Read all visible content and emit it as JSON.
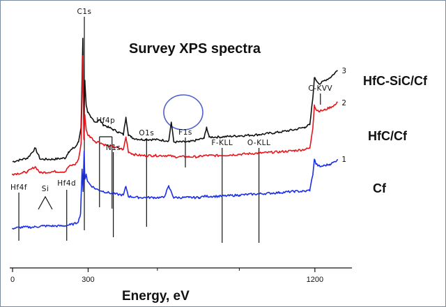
{
  "chart_data": {
    "type": "line",
    "title": "Survey XPS spectra",
    "xlabel": "Energy, eV",
    "ylabel": "",
    "xlim": [
      0,
      1300
    ],
    "ylim": [
      0,
      100
    ],
    "x_ticks": [
      {
        "value": 0,
        "label": "0"
      },
      {
        "value": 300,
        "label": "300"
      },
      {
        "value": 1200,
        "label": "1200"
      }
    ],
    "series": [
      {
        "name": "HfC-SiC/Cf",
        "number": "3",
        "color": "#111111",
        "x": [
          0,
          40,
          60,
          90,
          110,
          160,
          210,
          222,
          235,
          250,
          262,
          272,
          279,
          283,
          287,
          292,
          298,
          310,
          330,
          345,
          360,
          380,
          400,
          420,
          440,
          450,
          460,
          470,
          480,
          510,
          560,
          620,
          630,
          640,
          650,
          700,
          740,
          760,
          770,
          780,
          820,
          900,
          980,
          1060,
          1120,
          1160,
          1180,
          1192,
          1198,
          1205,
          1220,
          1240,
          1260,
          1280,
          1290
        ],
        "y": [
          43,
          44,
          44.5,
          48.5,
          44,
          44,
          44.5,
          47,
          48,
          49,
          51,
          57,
          93,
          58,
          76,
          66,
          63,
          61,
          59,
          60,
          58,
          57,
          56,
          55,
          54,
          61,
          54,
          53,
          52.5,
          52,
          52,
          51.5,
          59,
          51,
          51,
          51,
          52,
          52.5,
          57,
          53,
          53,
          53.5,
          54,
          55,
          56,
          57,
          58,
          69,
          77,
          76,
          74.5,
          76,
          77,
          79,
          80
        ]
      },
      {
        "name": "HfC/Cf",
        "number": "2",
        "color": "#e8141b",
        "x": [
          0,
          40,
          60,
          90,
          110,
          160,
          210,
          222,
          235,
          250,
          262,
          272,
          279,
          283,
          287,
          292,
          298,
          310,
          330,
          345,
          360,
          380,
          400,
          420,
          440,
          450,
          460,
          470,
          480,
          510,
          560,
          620,
          640,
          700,
          740,
          760,
          820,
          900,
          980,
          1060,
          1120,
          1160,
          1180,
          1192,
          1198,
          1205,
          1220,
          1240,
          1260,
          1280,
          1290
        ],
        "y": [
          38,
          38.5,
          39,
          41,
          38.5,
          39,
          39,
          41,
          41.5,
          42,
          44,
          50,
          86,
          52,
          62,
          56,
          54,
          53,
          51,
          51,
          50,
          49.5,
          49,
          48.5,
          48,
          53,
          47,
          46.5,
          46,
          45.5,
          45.5,
          45.5,
          45,
          45,
          45,
          45.5,
          45.5,
          46,
          46.5,
          47,
          47.5,
          48,
          48.5,
          57,
          66,
          64,
          63.5,
          64,
          65,
          66,
          67
        ]
      },
      {
        "name": "Cf",
        "number": "1",
        "color": "#1a2ee8",
        "x": [
          0,
          40,
          80,
          120,
          160,
          200,
          230,
          250,
          262,
          270,
          276,
          280,
          284,
          287,
          292,
          298,
          310,
          330,
          360,
          400,
          440,
          450,
          460,
          500,
          560,
          600,
          620,
          640,
          700,
          740,
          760,
          820,
          900,
          980,
          1060,
          1120,
          1160,
          1180,
          1192,
          1198,
          1205,
          1220,
          1240,
          1260,
          1280,
          1290
        ],
        "y": [
          16,
          16.5,
          16.5,
          17,
          17,
          17,
          17.5,
          18,
          19,
          22,
          40,
          31,
          47,
          36,
          38,
          35,
          33.5,
          32,
          31,
          30,
          29.5,
          33,
          29,
          28.5,
          28.5,
          28.5,
          33,
          28.5,
          28.5,
          28.5,
          29,
          29,
          29.5,
          30,
          30.5,
          31,
          31,
          31.5,
          38,
          44,
          42,
          41,
          41.5,
          42,
          43,
          44
        ]
      }
    ],
    "peaks": [
      {
        "label": "Hf4f",
        "x": 25
      },
      {
        "label": "Si",
        "x": 130
      },
      {
        "label": "Hf4d",
        "x": 215
      },
      {
        "label": "C1s",
        "x": 285
      },
      {
        "label": "Hf4p",
        "x": 370
      },
      {
        "label": "N1s",
        "x": 400
      },
      {
        "label": "O1s",
        "x": 532
      },
      {
        "label": "F1s",
        "x": 686
      },
      {
        "label": "F-KLL",
        "x": 832
      },
      {
        "label": "O-KLL",
        "x": 978
      },
      {
        "label": "C-KVV",
        "x": 1222
      }
    ],
    "grid": false,
    "legend": "right"
  }
}
